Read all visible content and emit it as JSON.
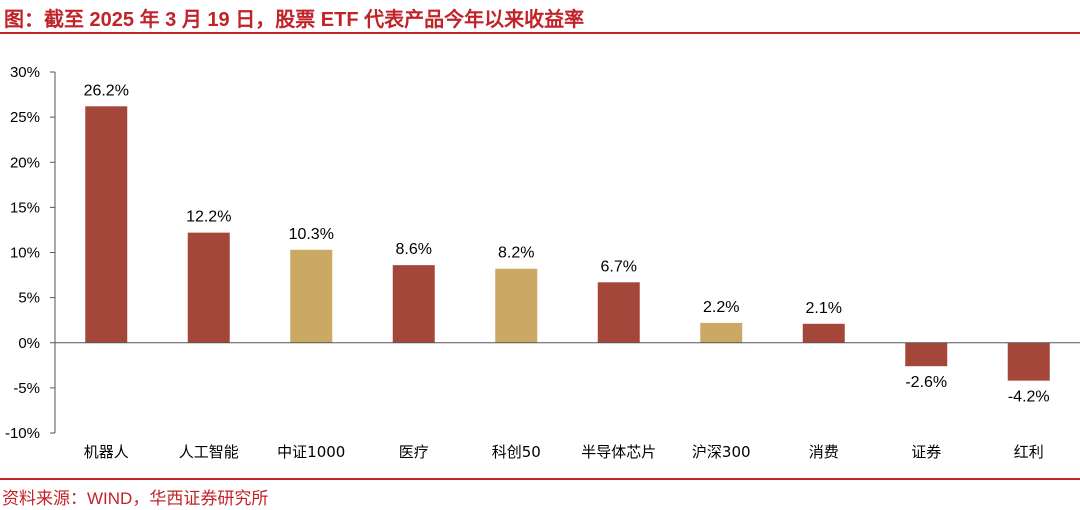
{
  "header": {
    "title": "图：截至 2025 年 3 月 19 日，股票 ETF 代表产品今年以来收益率"
  },
  "footer": {
    "source": "资料来源：WIND，华西证券研究所"
  },
  "colors": {
    "accent": "#c0242a",
    "bar_red": "#a5463b",
    "bar_gold": "#cca865"
  },
  "chart_data": {
    "type": "bar",
    "title": "图：截至 2025 年 3 月 19 日，股票 ETF 代表产品今年以来收益率",
    "xlabel": "",
    "ylabel": "",
    "categories": [
      "机器人",
      "人工智能",
      "中证1000",
      "医疗",
      "科创50",
      "半导体芯片",
      "沪深300",
      "消费",
      "证券",
      "红利"
    ],
    "values": [
      26.2,
      12.2,
      10.3,
      8.6,
      8.2,
      6.7,
      2.2,
      2.1,
      -2.6,
      -4.2
    ],
    "value_labels": [
      "26.2%",
      "12.2%",
      "10.3%",
      "8.6%",
      "8.2%",
      "6.7%",
      "2.2%",
      "2.1%",
      "-2.6%",
      "-4.2%"
    ],
    "bar_colors": [
      "#a5463b",
      "#a5463b",
      "#cca865",
      "#a5463b",
      "#cca865",
      "#a5463b",
      "#cca865",
      "#a5463b",
      "#a5463b",
      "#a5463b"
    ],
    "ylim": [
      -10,
      30
    ],
    "yticks": [
      30,
      25,
      20,
      15,
      10,
      5,
      0,
      -5,
      -10
    ],
    "ytick_labels": [
      "30%",
      "25%",
      "20%",
      "15%",
      "10%",
      "5%",
      "0%",
      "-5%",
      "-10%"
    ],
    "grid": false,
    "legend": "none"
  }
}
